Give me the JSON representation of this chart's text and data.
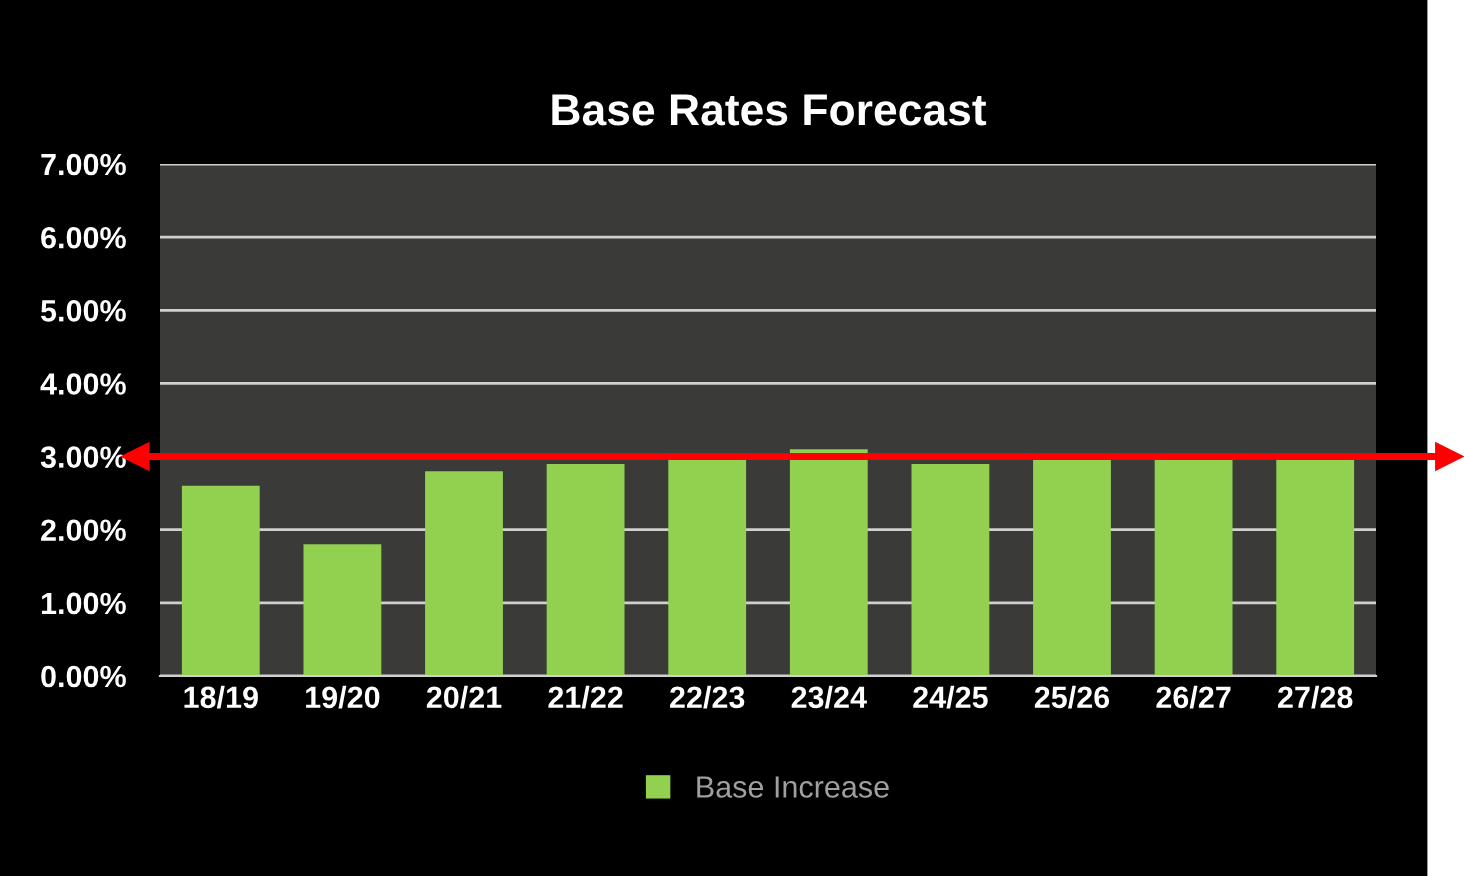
{
  "chart_data": {
    "type": "bar",
    "title": "Base Rates Forecast",
    "categories": [
      "18/19",
      "19/20",
      "20/21",
      "21/22",
      "22/23",
      "23/24",
      "24/25",
      "25/26",
      "26/27",
      "27/28"
    ],
    "series": [
      {
        "name": "Base Increase",
        "color": "#92d050",
        "values": [
          2.6,
          1.8,
          2.8,
          2.9,
          3.0,
          3.1,
          2.9,
          3.0,
          3.0,
          3.0
        ]
      }
    ],
    "ylim": [
      0,
      7
    ],
    "yticks": [
      {
        "value": 0,
        "label": "0.00%"
      },
      {
        "value": 1,
        "label": "1.00%"
      },
      {
        "value": 2,
        "label": "2.00%"
      },
      {
        "value": 3,
        "label": "3.00%"
      },
      {
        "value": 4,
        "label": "4.00%"
      },
      {
        "value": 5,
        "label": "5.00%"
      },
      {
        "value": 6,
        "label": "6.00%"
      },
      {
        "value": 7,
        "label": "7.00%"
      }
    ],
    "ref_lines": [
      {
        "axis": "y",
        "value": 3,
        "color": "#ff0000"
      }
    ],
    "grid": "y",
    "legend": "bottom"
  }
}
